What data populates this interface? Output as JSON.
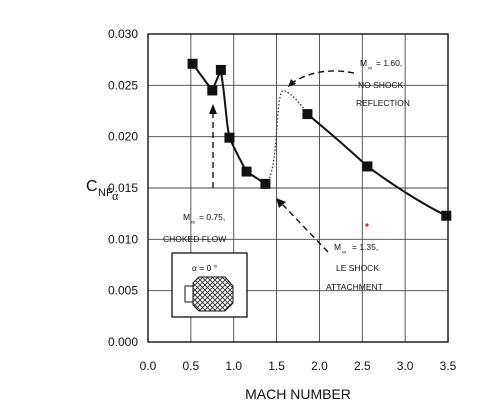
{
  "chart_data": {
    "type": "line",
    "xlabel": "MACH NUMBER",
    "ylabel": {
      "main": "C",
      "sub1": "NF",
      "sub2": "α"
    },
    "xlim": [
      0.0,
      3.5
    ],
    "ylim": [
      0.0,
      0.03
    ],
    "x_ticks": [
      "0.0",
      "0.5",
      "1.0",
      "1.5",
      "2.0",
      "2.5",
      "3.0",
      "3.5"
    ],
    "y_ticks": [
      "0.000",
      "0.005",
      "0.010",
      "0.015",
      "0.020",
      "0.025",
      "0.030"
    ],
    "x_tick_values": [
      0.0,
      0.5,
      1.0,
      1.5,
      2.0,
      2.5,
      3.0,
      3.5
    ],
    "y_tick_values": [
      0.0,
      0.005,
      0.01,
      0.015,
      0.02,
      0.025,
      0.03
    ],
    "grid": true,
    "points": [
      {
        "x": 0.52,
        "y": 0.0271
      },
      {
        "x": 0.75,
        "y": 0.0245
      },
      {
        "x": 0.85,
        "y": 0.0265
      },
      {
        "x": 0.95,
        "y": 0.0199
      },
      {
        "x": 1.15,
        "y": 0.0166
      },
      {
        "x": 1.37,
        "y": 0.0154
      },
      {
        "x": 1.86,
        "y": 0.0222
      },
      {
        "x": 2.56,
        "y": 0.0171
      },
      {
        "x": 3.48,
        "y": 0.0123
      }
    ],
    "annotations": [
      {
        "id": "m160",
        "mach_prefix": "M",
        "mach_sub": "∞",
        "value": "= 1.60,",
        "line2": "NO SHOCK",
        "line3": "REFLECTION"
      },
      {
        "id": "m075",
        "mach_prefix": "M",
        "mach_sub": "∞",
        "value": "= 0.75,",
        "line2": "CHOKED FLOW"
      },
      {
        "id": "m135",
        "mach_prefix": "M",
        "mach_sub": "∞",
        "value": "= 1.35,",
        "line2": "LE SHOCK",
        "line3": "ATTACHMENT"
      }
    ],
    "inset_label": "α = 0 °"
  }
}
